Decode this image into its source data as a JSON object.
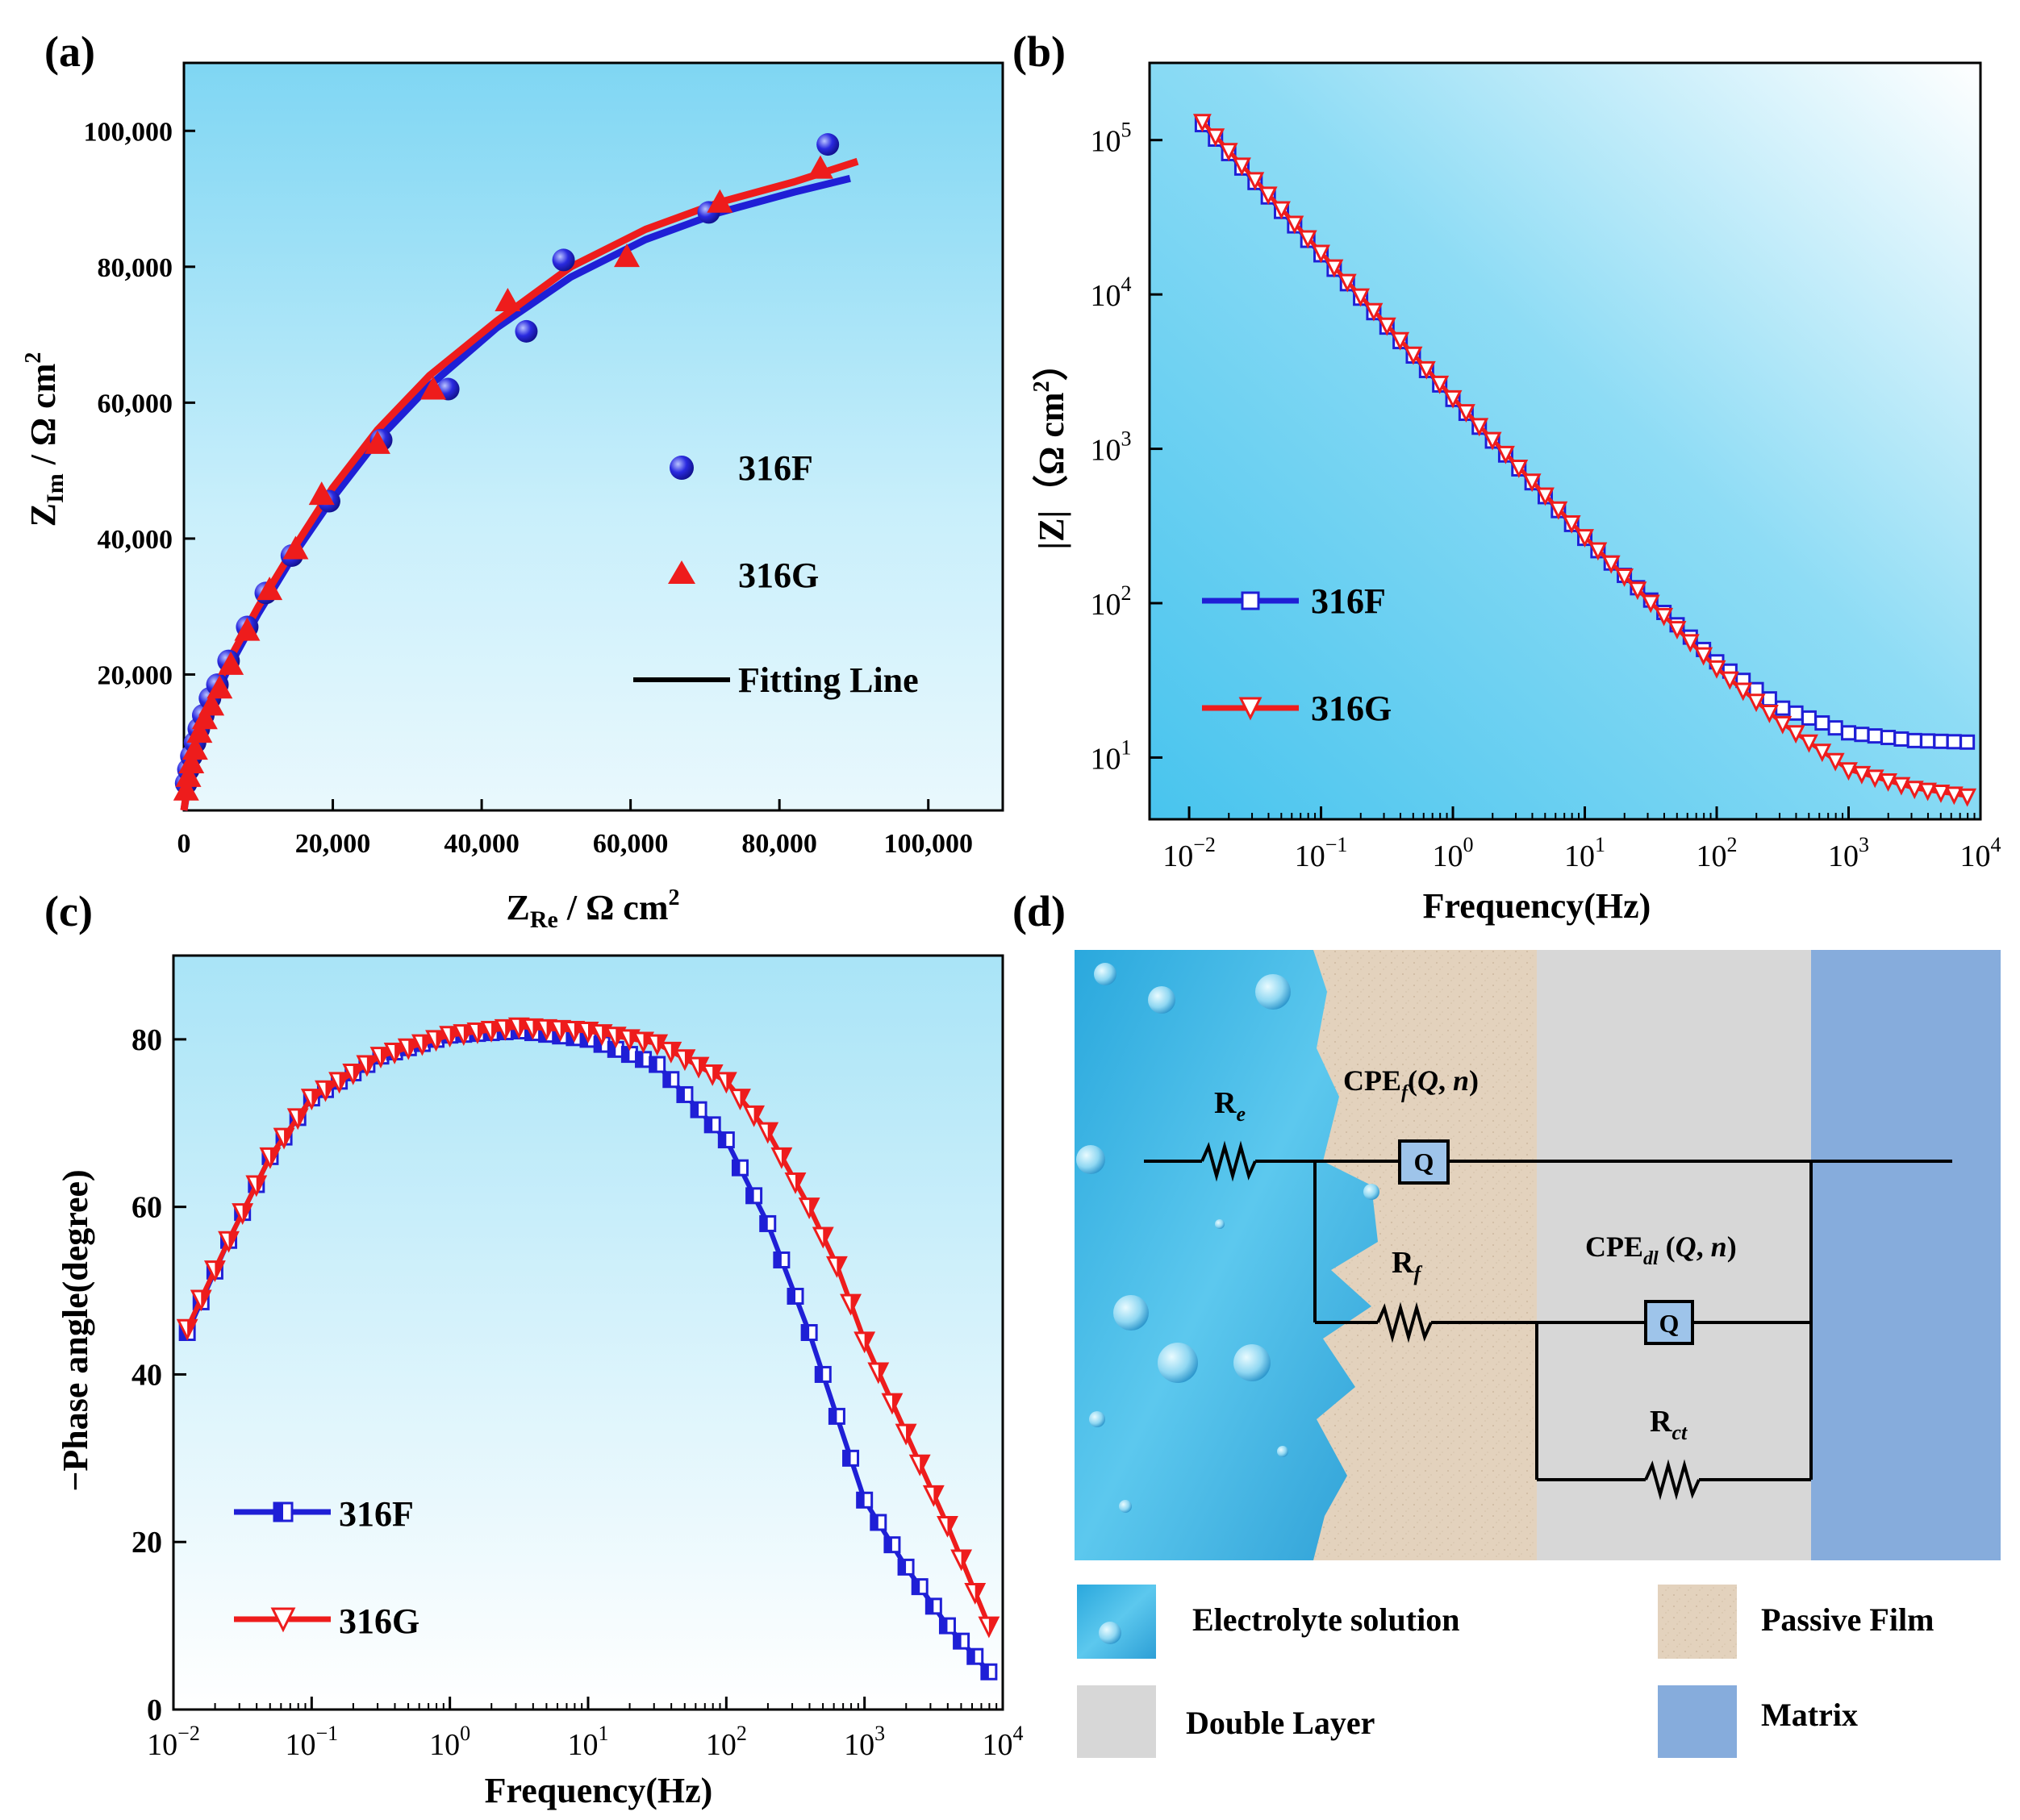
{
  "panel_labels": [
    "(a)",
    "(b)",
    "(c)",
    "(d)"
  ],
  "chart_data": [
    {
      "id": "a",
      "type": "scatter",
      "title": "",
      "xlabel_main": "Z",
      "xlabel_sub": "Re",
      "xlabel_unit": " / Ω cm",
      "xlabel_sup": "2",
      "ylabel_main": "Z",
      "ylabel_sub": "Im",
      "ylabel_unit": " / Ω cm",
      "ylabel_sup": "2",
      "xlim": [
        0,
        110000
      ],
      "ylim": [
        0,
        110000
      ],
      "xticks": [
        0,
        20000,
        40000,
        60000,
        80000,
        100000
      ],
      "xtick_labels": [
        "0",
        "20,000",
        "40,000",
        "60,000",
        "80,000",
        "100,000"
      ],
      "yticks": [
        20000,
        40000,
        60000,
        80000,
        100000
      ],
      "ytick_labels": [
        "20,000",
        "40,000",
        "60,000",
        "80,000",
        "100,000"
      ],
      "legend": [
        "316F",
        "316G",
        "Fitting Line"
      ],
      "series": [
        {
          "name": "316F",
          "color": "#1f1fd6",
          "marker": "sphere",
          "x": [
            300,
            600,
            1000,
            1500,
            2000,
            2600,
            3500,
            4500,
            6000,
            8500,
            11000,
            14500,
            19500,
            26500,
            35500,
            46000,
            51000,
            70500,
            86500
          ],
          "y": [
            4000,
            6000,
            8000,
            10000,
            12000,
            14000,
            16500,
            18500,
            22000,
            27000,
            32000,
            37500,
            45500,
            54500,
            62000,
            70500,
            81000,
            88000,
            98000
          ]
        },
        {
          "name": "316G",
          "color": "#ee1c1c",
          "marker": "triangle",
          "x": [
            300,
            600,
            1000,
            1500,
            2100,
            2800,
            3700,
            4800,
            6300,
            8500,
            11500,
            15000,
            18500,
            26000,
            33500,
            43500,
            59500,
            72000,
            85500
          ],
          "y": [
            3000,
            5000,
            7000,
            9000,
            11500,
            13500,
            15500,
            18000,
            21500,
            26500,
            32500,
            38500,
            46500,
            54000,
            62000,
            75000,
            81500,
            89500,
            94500
          ]
        },
        {
          "name": "316F fit",
          "color": "#1f1fd6",
          "marker": "line",
          "x": [
            0,
            1000,
            3000,
            6000,
            10000,
            15000,
            20000,
            26000,
            33000,
            42000,
            52000,
            62000,
            72000,
            82000,
            89500
          ],
          "y": [
            0,
            7000,
            14000,
            21000,
            29000,
            38000,
            46000,
            54500,
            62500,
            71000,
            78500,
            84000,
            88000,
            91000,
            93000
          ]
        },
        {
          "name": "316G fit",
          "color": "#ee1c1c",
          "marker": "line",
          "x": [
            0,
            1000,
            3000,
            6000,
            10000,
            15000,
            20000,
            26000,
            33000,
            42000,
            52000,
            62000,
            72000,
            82000,
            90500
          ],
          "y": [
            0,
            7500,
            15000,
            22000,
            30000,
            39000,
            47500,
            56000,
            64000,
            72000,
            80000,
            85500,
            89500,
            92500,
            95500
          ]
        }
      ]
    },
    {
      "id": "b",
      "type": "line",
      "xscale": "log",
      "yscale": "log",
      "xlabel": "Frequency(Hz)",
      "ylabel": "|Z|（Ω cm²）",
      "ylabel_main": "|Z|（Ω cm",
      "ylabel_sup": "2",
      "ylabel_end": "）",
      "xlim_exp": [
        -2.3,
        4
      ],
      "ylim_exp": [
        0.6,
        5.5
      ],
      "xtick_exps": [
        -2,
        -1,
        0,
        1,
        2,
        3,
        4
      ],
      "ytick_exps": [
        1,
        2,
        3,
        4,
        5
      ],
      "tick_base": "10",
      "legend": [
        "316F",
        "316G"
      ],
      "series": [
        {
          "name": "316F",
          "color": "#1f1fd6",
          "marker": "square-open",
          "log10_f": [
            -1.9,
            0,
            1,
            2,
            2.5,
            3,
            3.5,
            3.9
          ],
          "log10_z": [
            5.1,
            3.32,
            2.42,
            1.62,
            1.32,
            1.16,
            1.11,
            1.1
          ]
        },
        {
          "name": "316G",
          "color": "#ee1c1c",
          "marker": "triangle-down-open",
          "log10_f": [
            -1.9,
            0,
            1,
            2,
            2.5,
            3,
            3.5,
            3.9
          ],
          "log10_z": [
            5.12,
            3.33,
            2.43,
            1.58,
            1.22,
            0.92,
            0.8,
            0.75
          ]
        }
      ]
    },
    {
      "id": "c",
      "type": "line",
      "xscale": "log",
      "xlabel": "Frequency(Hz)",
      "ylabel": "−Phase angle(degree)",
      "xlim_exp": [
        -2,
        4
      ],
      "ylim": [
        0,
        90
      ],
      "xtick_exps": [
        -2,
        -1,
        0,
        1,
        2,
        3,
        4
      ],
      "tick_base": "10",
      "yticks": [
        0,
        20,
        40,
        60,
        80
      ],
      "ytick_labels": [
        "0",
        "20",
        "40",
        "60",
        "80"
      ],
      "legend": [
        "316F",
        "316G"
      ],
      "series": [
        {
          "name": "316F",
          "color": "#1f1fd6",
          "marker": "square-half",
          "log10_f": [
            -1.9,
            -1.6,
            -1.3,
            -1,
            -0.5,
            0,
            0.5,
            1,
            1.5,
            2,
            2.3,
            2.6,
            2.8,
            3,
            3.3,
            3.6,
            3.9
          ],
          "y": [
            45,
            56,
            66,
            73,
            78,
            80.5,
            81,
            80,
            77,
            68,
            58,
            45,
            35,
            25,
            17,
            10,
            4.5
          ]
        },
        {
          "name": "316G",
          "color": "#ee1c1c",
          "marker": "triangle-down-half",
          "log10_f": [
            -1.9,
            -1.6,
            -1.3,
            -1,
            -0.5,
            0,
            0.5,
            1,
            1.5,
            2,
            2.3,
            2.6,
            2.8,
            3,
            3.3,
            3.6,
            3.9
          ],
          "y": [
            45.5,
            56,
            66,
            73,
            78,
            80.5,
            81.5,
            81,
            79.5,
            75,
            69,
            60,
            53,
            44,
            33,
            22,
            10
          ]
        }
      ]
    }
  ],
  "circuit": {
    "labels": {
      "re_main": "R",
      "re_sub": "e",
      "cpef_main": "CPE",
      "cpef_sub": "f",
      "cpef_args_open": "(",
      "cpef_q": "Q",
      "cpef_comma": ", ",
      "cpef_n": "n",
      "cpef_close": ")",
      "rf_main": "R",
      "rf_sub": "f",
      "cpedl_main": "CPE",
      "cpedl_sub": "dl",
      "cpedl_args_open": " (",
      "cpedl_q": "Q",
      "cpedl_comma": ", ",
      "cpedl_n": "n",
      "cpedl_close": ")",
      "rct_main": "R",
      "rct_sub": "ct",
      "q_box": "Q"
    },
    "layers": [
      {
        "name": "Electrolyte solution",
        "color": "#3fb7e3"
      },
      {
        "name": "Passive Film",
        "color": "#e3d2bd"
      },
      {
        "name": "Double Layer",
        "color": "#d7d7d7"
      },
      {
        "name": "Matrix",
        "color": "#86acdc"
      }
    ]
  },
  "colors": {
    "bg_top": "#c7eefb",
    "bg_bottom": "#6cd0f1",
    "bg_light": "#ffffff",
    "axis": "#000000"
  }
}
